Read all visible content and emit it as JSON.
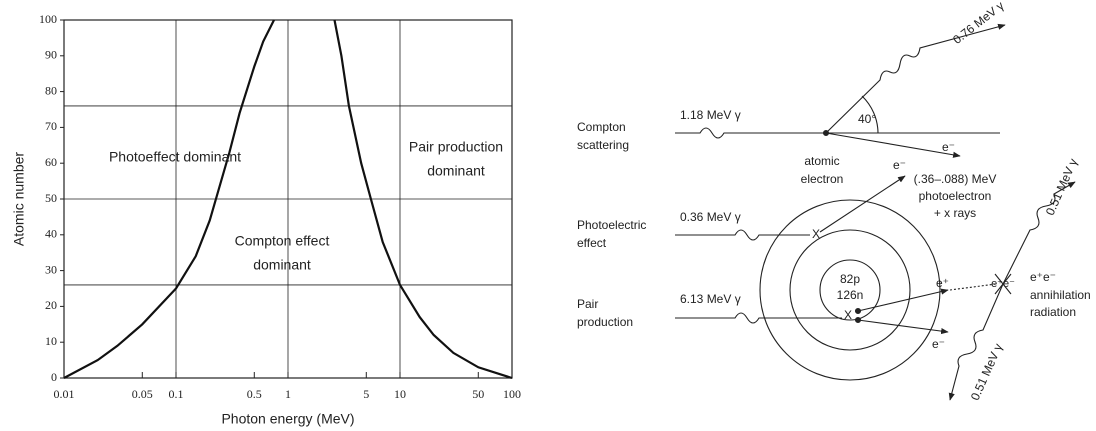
{
  "chart_data": {
    "type": "line",
    "xlabel": "Photon energy (MeV)",
    "ylabel": "Atomic number",
    "xscale": "log",
    "xlim": [
      0.01,
      100
    ],
    "ylim": [
      0,
      100
    ],
    "xticks": [
      0.01,
      0.05,
      0.1,
      0.5,
      1,
      5,
      10,
      50,
      100
    ],
    "yticks": [
      0,
      10,
      20,
      30,
      40,
      50,
      60,
      70,
      80,
      90,
      100
    ],
    "xgrid": [
      0.1,
      1,
      10
    ],
    "ygrid": [
      26,
      50,
      76
    ],
    "series": [
      {
        "color": "#111111",
        "x": [
          0.01,
          0.02,
          0.03,
          0.05,
          0.1,
          0.15,
          0.2,
          0.3,
          0.37,
          0.5,
          0.6,
          0.75
        ],
        "values": [
          0,
          5,
          9,
          15,
          25,
          34,
          44,
          63,
          74,
          87,
          94,
          100
        ]
      },
      {
        "color": "#111111",
        "x": [
          2.6,
          3,
          3.5,
          4.5,
          5.5,
          7,
          10,
          15,
          20,
          30,
          50,
          100
        ],
        "values": [
          100,
          90,
          76,
          60,
          50,
          38,
          26,
          17,
          12,
          7,
          3,
          0
        ]
      }
    ],
    "annotations": [
      [
        "Photoeffect dominant"
      ],
      [
        "Compton effect",
        "dominant"
      ],
      [
        "Pair production",
        "dominant"
      ]
    ]
  },
  "diagram": {
    "compton": {
      "label": [
        "Compton",
        "scattering"
      ],
      "incident": "1.18 MeV γ",
      "scattered": "0.76 MeV γ",
      "angle": "40°",
      "electron": "e⁻",
      "target": [
        "atomic",
        "electron"
      ]
    },
    "photoelectric": {
      "label": [
        "Photoelectric",
        "effect"
      ],
      "incident": "0.36 MeV γ",
      "electron": "e⁻",
      "absorb": "X",
      "result": [
        "(.36–.088) MeV",
        "photoelectron",
        "+ x rays"
      ]
    },
    "nucleus": [
      "82p",
      "126n"
    ],
    "pair": {
      "label": [
        "Pair",
        "production"
      ],
      "incident": "6.13 MeV γ",
      "absorb": "X",
      "positron": "e⁺",
      "electron": "e⁻",
      "pair": "e⁺e⁻",
      "result": [
        "annihilation",
        "radiation"
      ],
      "gamma_up": "0.51 MeV γ",
      "gamma_down": "0.51 MeV γ"
    }
  }
}
